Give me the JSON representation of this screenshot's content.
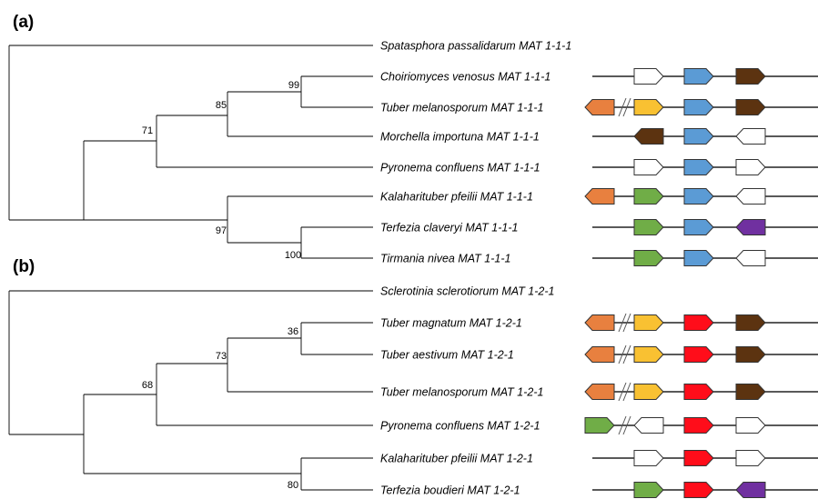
{
  "gene_colors": {
    "orange": "#E8803F",
    "yellow": "#F9C132",
    "blue": "#5B9BD5",
    "brown": "#5C3310",
    "green": "#70AD47",
    "purple": "#7030A0",
    "red": "#FF0D1A",
    "white": "#FFFFFF"
  },
  "panels": [
    {
      "label": "(a)",
      "taxa": [
        {
          "name": "Spatasphora passalidarum MAT 1-1-1",
          "genes": [],
          "gap": false
        },
        {
          "name": "Choiriomyces venosus MAT 1-1-1",
          "genes": [
            null,
            "white-R",
            "blue-R",
            "brown-R"
          ],
          "gap": false
        },
        {
          "name": "Tuber melanosporum MAT 1-1-1",
          "genes": [
            "orange-L",
            "yellow-R",
            "blue-R",
            "brown-R"
          ],
          "gap": true
        },
        {
          "name": "Morchella importuna MAT 1-1-1",
          "genes": [
            null,
            "brown-L",
            "blue-R",
            "white-L"
          ],
          "gap": false
        },
        {
          "name": "Pyronema confluens MAT 1-1-1",
          "genes": [
            null,
            "white-R",
            "blue-R",
            "white-R"
          ],
          "gap": false
        },
        {
          "name": "Kalaharituber pfeilii MAT 1-1-1",
          "genes": [
            "orange-L",
            "green-R",
            "blue-R",
            "white-L"
          ],
          "gap": false
        },
        {
          "name": "Terfezia claveryi MAT 1-1-1",
          "genes": [
            null,
            "green-R",
            "blue-R",
            "purple-L"
          ],
          "gap": false
        },
        {
          "name": "Tirmania nivea MAT 1-1-1",
          "genes": [
            null,
            "green-R",
            "blue-R",
            "white-L"
          ],
          "gap": false
        }
      ],
      "support": [
        "99",
        "85",
        "71",
        "97",
        "100"
      ]
    },
    {
      "label": "(b)",
      "taxa": [
        {
          "name": "Sclerotinia sclerotiorum MAT 1-2-1",
          "genes": [],
          "gap": false
        },
        {
          "name": "Tuber magnatum MAT 1-2-1",
          "genes": [
            "orange-L",
            "yellow-R",
            "red-R",
            "brown-R"
          ],
          "gap": true
        },
        {
          "name": "Tuber aestivum MAT 1-2-1",
          "genes": [
            "orange-L",
            "yellow-R",
            "red-R",
            "brown-R"
          ],
          "gap": true
        },
        {
          "name": "Tuber melanosporum MAT 1-2-1",
          "genes": [
            "orange-L",
            "yellow-R",
            "red-R",
            "brown-R"
          ],
          "gap": true
        },
        {
          "name": "Pyronema confluens MAT 1-2-1",
          "genes": [
            "green-R",
            "white-L",
            "red-R",
            "white-R"
          ],
          "gap": true
        },
        {
          "name": "Kalaharituber pfeilii MAT 1-2-1",
          "genes": [
            null,
            "white-R",
            "red-R",
            "white-R"
          ],
          "gap": false
        },
        {
          "name": "Terfezia boudieri MAT 1-2-1",
          "genes": [
            null,
            "green-R",
            "red-R",
            "purple-L"
          ],
          "gap": false
        }
      ],
      "support": [
        "36",
        "73",
        "68",
        "80"
      ]
    }
  ]
}
